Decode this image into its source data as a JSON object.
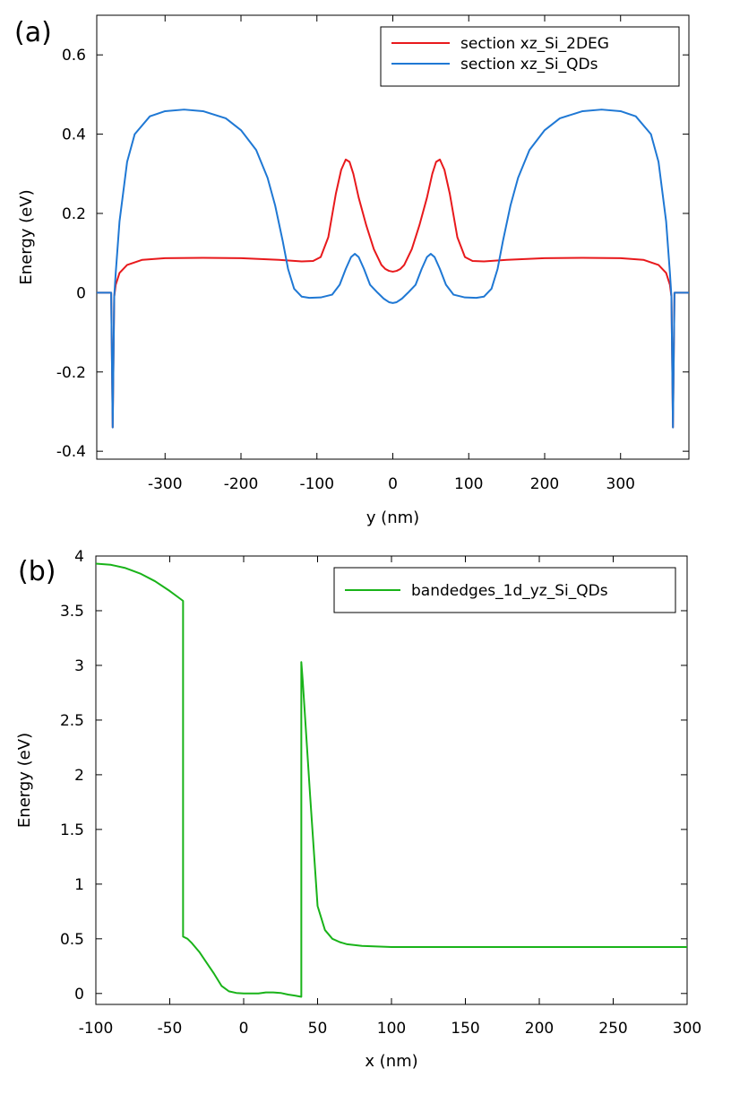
{
  "chart_data": [
    {
      "panel_label": "(a)",
      "type": "line",
      "title": "",
      "xlabel": "y (nm)",
      "ylabel": "Energy (eV)",
      "xlim": [
        -390,
        390
      ],
      "ylim": [
        -0.42,
        0.7
      ],
      "xticks": [
        -300,
        -200,
        -100,
        0,
        100,
        200,
        300
      ],
      "xtick_labels": [
        "-300",
        "-200",
        "-100",
        "0",
        "100",
        "200",
        "300"
      ],
      "yticks": [
        -0.4,
        -0.2,
        0,
        0.2,
        0.4,
        0.6
      ],
      "ytick_labels": [
        "-0.4",
        "-0.2",
        "0",
        "0.2",
        "0.4",
        "0.6"
      ],
      "grid": false,
      "legend_position": "top-right",
      "series": [
        {
          "name": "section xz_Si_2DEG",
          "color": "#e8191c",
          "x": [
            -390,
            -375,
            -371,
            -369,
            -367,
            -365,
            -360,
            -350,
            -330,
            -300,
            -250,
            -200,
            -150,
            -120,
            -105,
            -95,
            -85,
            -75,
            -68,
            -62,
            -57,
            -52,
            -45,
            -35,
            -25,
            -15,
            -10,
            -5,
            0,
            5,
            10,
            15,
            25,
            35,
            45,
            52,
            57,
            62,
            68,
            75,
            85,
            95,
            105,
            120,
            150,
            200,
            250,
            300,
            330,
            350,
            360,
            365,
            367,
            369,
            371,
            375,
            390
          ],
          "y": [
            0,
            0,
            0,
            -0.34,
            -0.01,
            0.02,
            0.05,
            0.07,
            0.083,
            0.087,
            0.088,
            0.087,
            0.083,
            0.079,
            0.08,
            0.09,
            0.14,
            0.25,
            0.31,
            0.336,
            0.33,
            0.3,
            0.24,
            0.17,
            0.11,
            0.07,
            0.06,
            0.055,
            0.053,
            0.055,
            0.06,
            0.07,
            0.11,
            0.17,
            0.24,
            0.3,
            0.33,
            0.336,
            0.31,
            0.25,
            0.14,
            0.09,
            0.08,
            0.079,
            0.083,
            0.087,
            0.088,
            0.087,
            0.083,
            0.07,
            0.05,
            0.02,
            -0.01,
            -0.34,
            0,
            0,
            0
          ]
        },
        {
          "name": "section xz_Si_QDs",
          "color": "#1f78d4",
          "x": [
            -390,
            -375,
            -371,
            -369,
            -367,
            -365,
            -360,
            -350,
            -340,
            -320,
            -300,
            -275,
            -250,
            -220,
            -200,
            -180,
            -165,
            -155,
            -145,
            -138,
            -130,
            -120,
            -110,
            -95,
            -80,
            -70,
            -62,
            -55,
            -50,
            -45,
            -38,
            -30,
            -20,
            -12,
            -5,
            0,
            5,
            12,
            20,
            30,
            38,
            45,
            50,
            55,
            62,
            70,
            80,
            95,
            110,
            120,
            130,
            138,
            145,
            155,
            165,
            180,
            200,
            220,
            250,
            275,
            300,
            320,
            340,
            350,
            360,
            365,
            367,
            369,
            371,
            375,
            390
          ],
          "y": [
            0,
            0,
            0,
            -0.34,
            -0.01,
            0.05,
            0.18,
            0.33,
            0.4,
            0.445,
            0.458,
            0.462,
            0.458,
            0.44,
            0.41,
            0.36,
            0.29,
            0.22,
            0.13,
            0.06,
            0.01,
            -0.01,
            -0.013,
            -0.012,
            -0.005,
            0.02,
            0.06,
            0.09,
            0.098,
            0.09,
            0.06,
            0.02,
            0.0,
            -0.015,
            -0.024,
            -0.026,
            -0.024,
            -0.015,
            0.0,
            0.02,
            0.06,
            0.09,
            0.098,
            0.09,
            0.06,
            0.02,
            -0.005,
            -0.012,
            -0.013,
            -0.01,
            0.01,
            0.06,
            0.13,
            0.22,
            0.29,
            0.36,
            0.41,
            0.44,
            0.458,
            0.462,
            0.458,
            0.445,
            0.4,
            0.33,
            0.18,
            0.05,
            -0.01,
            -0.34,
            0,
            0,
            0
          ]
        }
      ]
    },
    {
      "panel_label": "(b)",
      "type": "line",
      "title": "",
      "xlabel": "x (nm)",
      "ylabel": "Energy (eV)",
      "xlim": [
        -100,
        300
      ],
      "ylim": [
        -0.1,
        4
      ],
      "xticks": [
        -100,
        -50,
        0,
        50,
        100,
        150,
        200,
        250,
        300
      ],
      "xtick_labels": [
        "-100",
        "-50",
        "0",
        "50",
        "100",
        "150",
        "200",
        "250",
        "300"
      ],
      "yticks": [
        0,
        0.5,
        1,
        1.5,
        2,
        2.5,
        3,
        3.5,
        4
      ],
      "ytick_labels": [
        "0",
        "0.5",
        "1",
        "1.5",
        "2",
        "2.5",
        "3",
        "3.5",
        "4"
      ],
      "grid": false,
      "legend_position": "top-right",
      "series": [
        {
          "name": "bandedges_1d_yz_Si_QDs",
          "color": "#19b319",
          "x": [
            -100,
            -90,
            -80,
            -70,
            -60,
            -50,
            -45,
            -41,
            -41,
            -38,
            -35,
            -30,
            -25,
            -20,
            -15,
            -10,
            -5,
            0,
            10,
            15,
            20,
            25,
            30,
            35,
            39,
            39,
            40,
            45,
            50,
            55,
            60,
            65,
            70,
            80,
            90,
            100,
            125,
            150,
            200,
            250,
            300
          ],
          "y": [
            3.93,
            3.92,
            3.89,
            3.84,
            3.77,
            3.68,
            3.63,
            3.59,
            0.52,
            0.5,
            0.46,
            0.38,
            0.28,
            0.18,
            0.07,
            0.02,
            0.005,
            0.0,
            0.0,
            0.01,
            0.01,
            0.005,
            -0.01,
            -0.02,
            -0.03,
            3.03,
            2.85,
            1.8,
            0.8,
            0.58,
            0.5,
            0.47,
            0.45,
            0.435,
            0.43,
            0.425,
            0.425,
            0.425,
            0.425,
            0.425,
            0.425
          ]
        }
      ]
    }
  ]
}
